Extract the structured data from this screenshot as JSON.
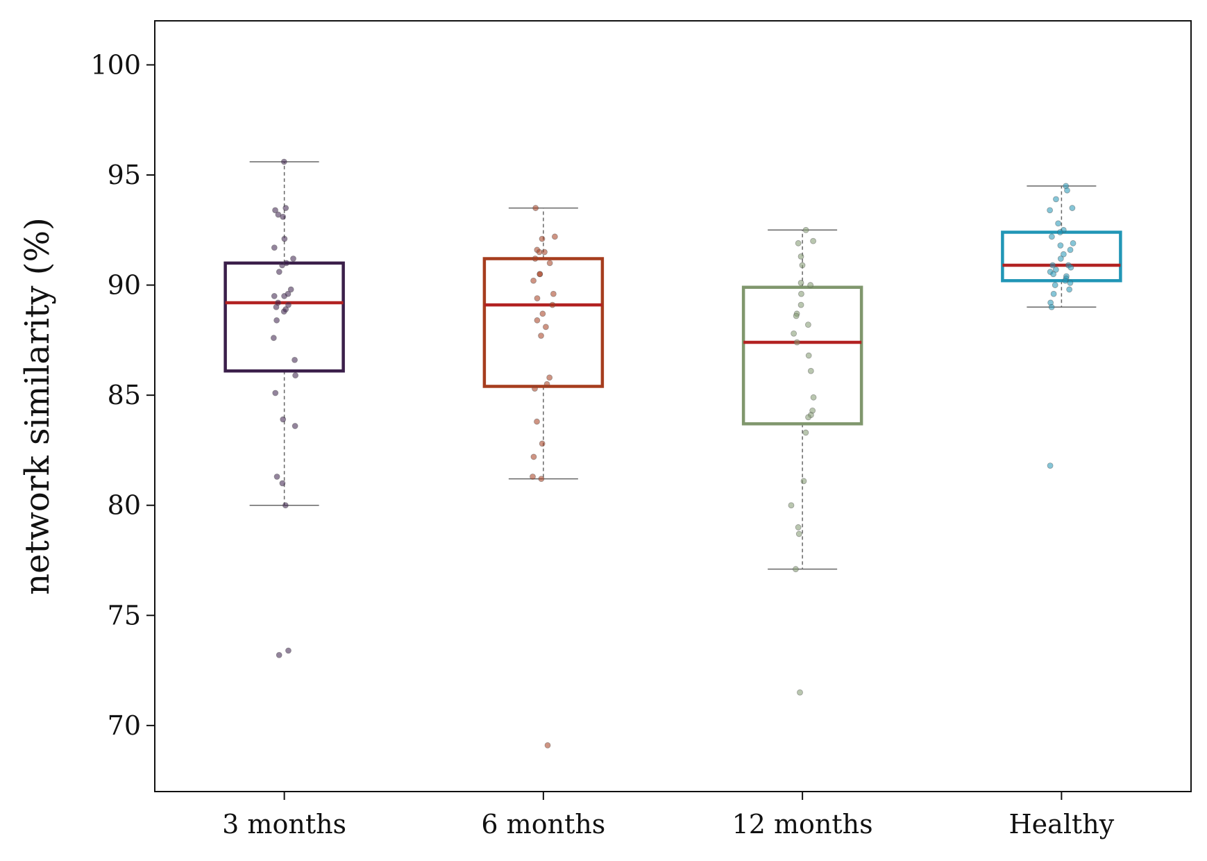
{
  "chart_data": {
    "type": "box",
    "ylabel": "network similarity (%)",
    "ylim": [
      67,
      102
    ],
    "yticks": [
      70,
      75,
      80,
      85,
      90,
      95,
      100
    ],
    "categories": [
      "3 months",
      "6 months",
      "12 months",
      "Healthy"
    ],
    "median_color": "#b22222",
    "whisker_color": "#666666",
    "groups": [
      {
        "label": "3 months",
        "color": "#3b1f4a",
        "q1": 86.1,
        "median": 89.2,
        "q3": 91.0,
        "whisker_low": 80.0,
        "whisker_high": 95.6,
        "points": [
          95.6,
          93.5,
          93.4,
          93.2,
          93.1,
          92.1,
          91.7,
          91.2,
          91.0,
          90.9,
          90.6,
          89.8,
          89.6,
          89.5,
          89.5,
          89.2,
          89.1,
          89.0,
          88.9,
          88.8,
          88.4,
          87.6,
          86.6,
          85.9,
          85.1,
          83.9,
          83.6,
          81.3,
          81.0,
          80.0,
          73.4,
          73.2
        ]
      },
      {
        "label": "6 months",
        "color": "#a63d1e",
        "q1": 85.4,
        "median": 89.1,
        "q3": 91.2,
        "whisker_low": 81.2,
        "whisker_high": 93.5,
        "points": [
          93.5,
          92.2,
          92.1,
          91.6,
          91.5,
          91.5,
          91.2,
          91.0,
          90.5,
          90.5,
          90.2,
          89.6,
          89.4,
          89.1,
          88.7,
          88.4,
          88.1,
          87.7,
          85.8,
          85.5,
          85.3,
          83.8,
          82.8,
          82.2,
          81.3,
          81.2,
          69.1
        ]
      },
      {
        "label": "12 months",
        "color": "#80976d",
        "q1": 83.7,
        "median": 87.4,
        "q3": 89.9,
        "whisker_low": 77.1,
        "whisker_high": 92.5,
        "points": [
          92.5,
          92.0,
          91.9,
          91.3,
          90.9,
          90.1,
          90.0,
          89.6,
          89.1,
          88.7,
          88.6,
          88.2,
          87.8,
          87.4,
          86.8,
          86.1,
          84.9,
          84.3,
          84.1,
          84.0,
          83.3,
          81.1,
          80.0,
          79.0,
          78.7,
          77.1,
          71.5
        ]
      },
      {
        "label": "Healthy",
        "color": "#2196b6",
        "q1": 90.2,
        "median": 90.9,
        "q3": 92.4,
        "whisker_low": 89.0,
        "whisker_high": 94.5,
        "points": [
          94.5,
          94.3,
          93.9,
          93.5,
          93.4,
          92.8,
          92.5,
          92.4,
          92.2,
          91.9,
          91.8,
          91.6,
          91.4,
          91.2,
          90.9,
          90.9,
          90.8,
          90.7,
          90.6,
          90.5,
          90.4,
          90.3,
          90.2,
          90.1,
          90.0,
          89.8,
          89.6,
          89.2,
          89.0,
          81.8
        ]
      }
    ]
  }
}
